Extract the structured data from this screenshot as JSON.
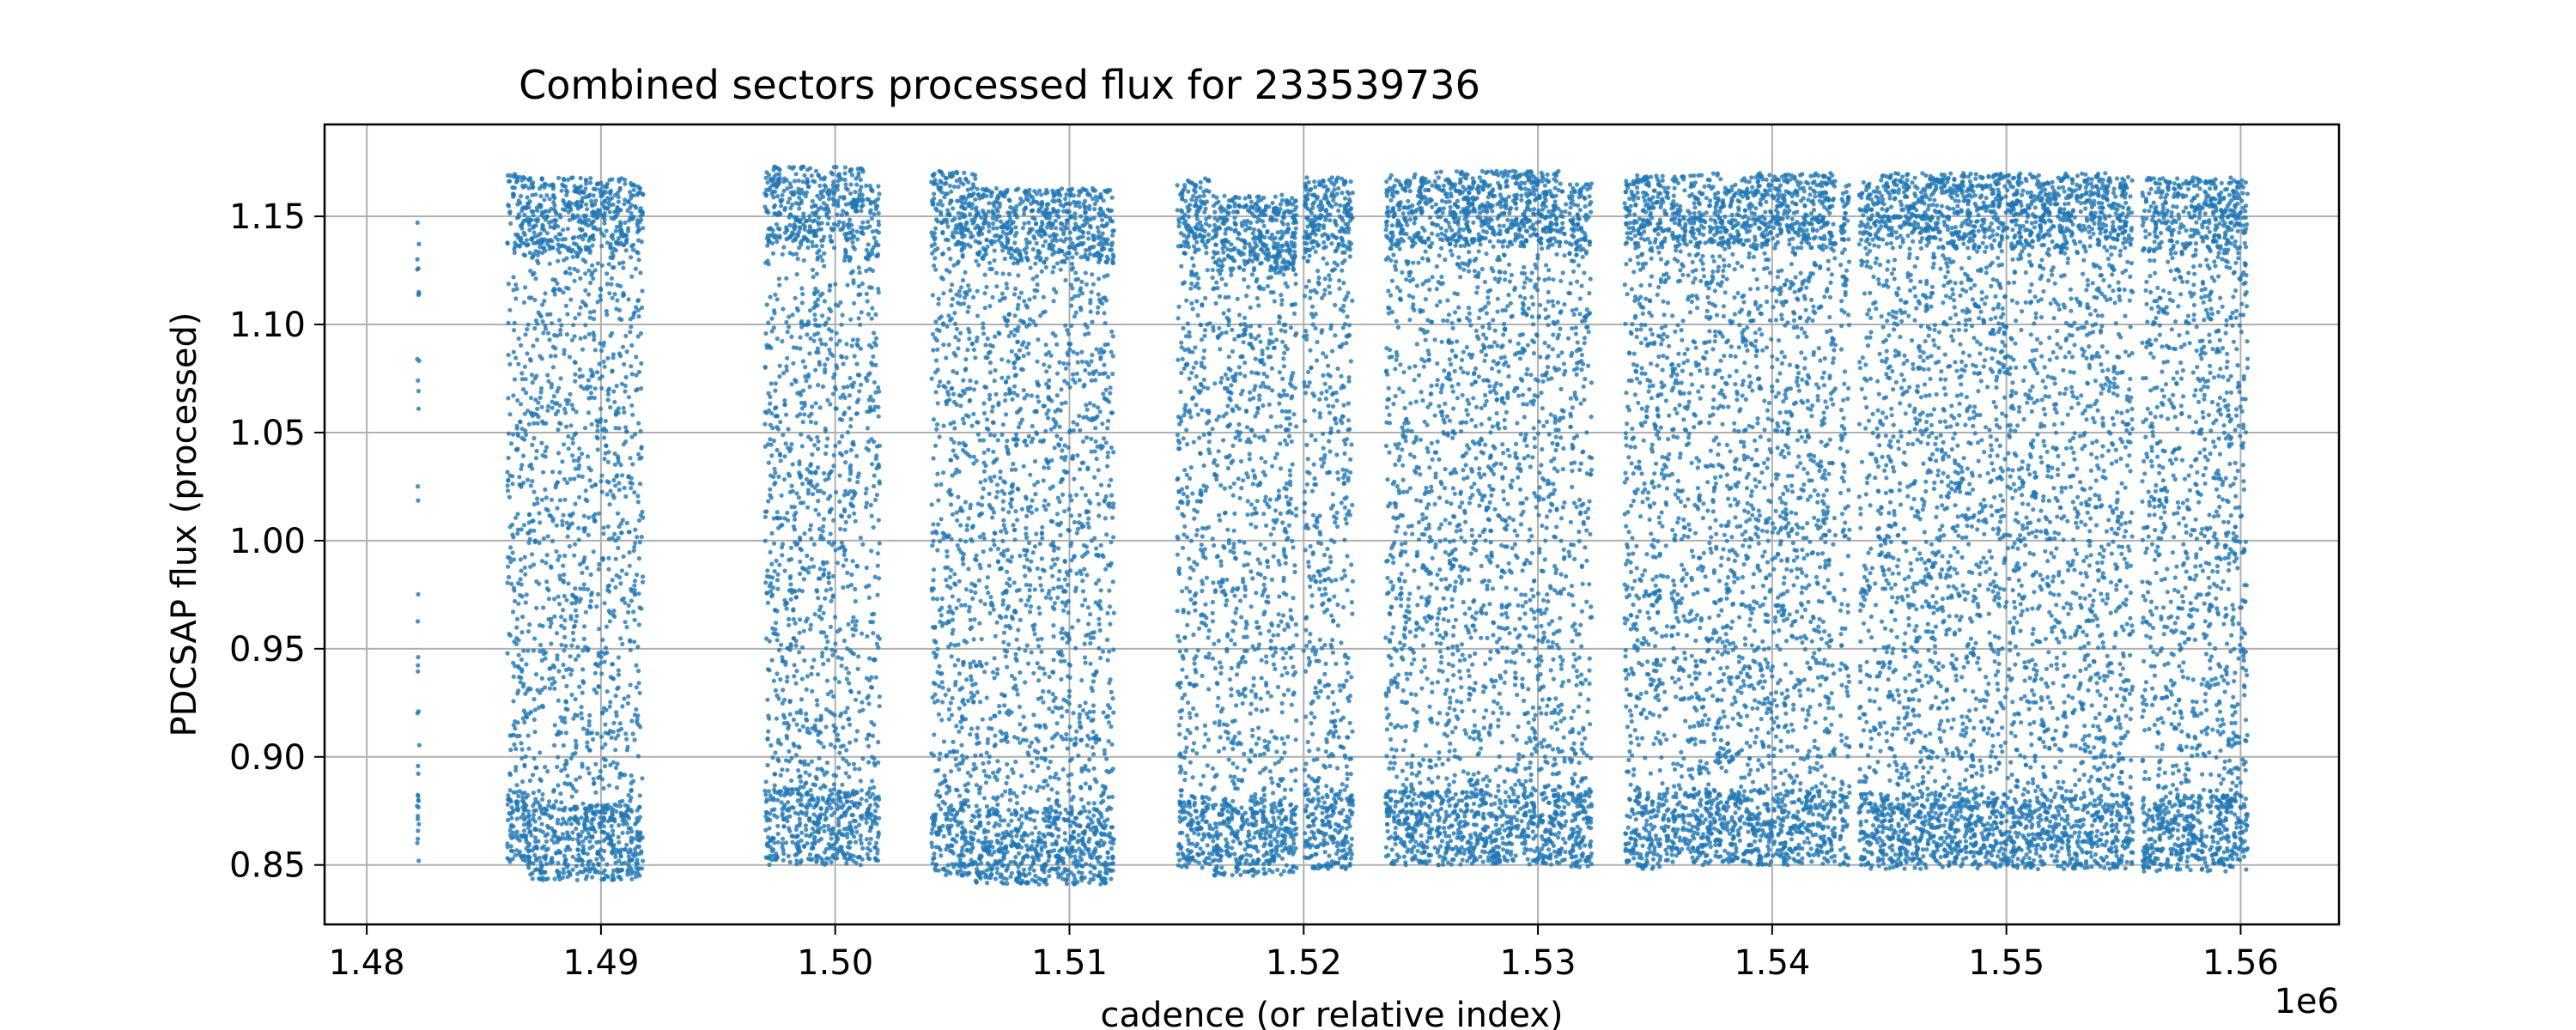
{
  "chart_data": {
    "type": "scatter",
    "title": "Combined sectors processed flux for 233539736",
    "xlabel": "cadence (or relative index)",
    "ylabel": "PDCSAP flux (processed)",
    "x_offset_label": "1e6",
    "xlim": [
      1.4782,
      1.5642
    ],
    "ylim": [
      0.8225,
      1.1925
    ],
    "x_ticks": [
      1.48,
      1.49,
      1.5,
      1.51,
      1.52,
      1.53,
      1.54,
      1.55,
      1.56
    ],
    "x_tick_labels": [
      "1.48",
      "1.49",
      "1.50",
      "1.51",
      "1.52",
      "1.53",
      "1.54",
      "1.55",
      "1.56"
    ],
    "y_ticks": [
      0.85,
      0.9,
      0.95,
      1.0,
      1.05,
      1.1,
      1.15
    ],
    "y_tick_labels": [
      "0.85",
      "0.90",
      "0.95",
      "1.00",
      "1.05",
      "1.10",
      "1.15"
    ],
    "grid": true,
    "marker_color": "#1f77b4",
    "series": [
      {
        "segments": [
          {
            "x": [
              1.48215,
              1.48225
            ],
            "y": [
              0.848,
              1.148
            ]
          },
          {
            "x": [
              1.486,
              1.4869
            ],
            "y": [
              0.85,
              1.17
            ]
          },
          {
            "x": [
              1.4869,
              1.4918
            ],
            "y": [
              0.843,
              1.168
            ]
          },
          {
            "x": [
              1.497,
              1.5012
            ],
            "y": [
              0.85,
              1.173
            ]
          },
          {
            "x": [
              1.5013,
              1.5019
            ],
            "y": [
              0.852,
              1.165
            ]
          },
          {
            "x": [
              1.5041,
              1.506
            ],
            "y": [
              0.845,
              1.171
            ]
          },
          {
            "x": [
              1.506,
              1.5119
            ],
            "y": [
              0.841,
              1.163
            ]
          },
          {
            "x": [
              1.5146,
              1.516
            ],
            "y": [
              0.848,
              1.168
            ]
          },
          {
            "x": [
              1.5161,
              1.5197
            ],
            "y": [
              0.845,
              1.16
            ]
          },
          {
            "x": [
              1.52,
              1.5221
            ],
            "y": [
              0.848,
              1.168
            ]
          },
          {
            "x": [
              1.5235,
              1.5255
            ],
            "y": [
              0.85,
              1.17
            ]
          },
          {
            "x": [
              1.5256,
              1.5312
            ],
            "y": [
              0.85,
              1.171
            ]
          },
          {
            "x": [
              1.5313,
              1.5323
            ],
            "y": [
              0.849,
              1.166
            ]
          },
          {
            "x": [
              1.5337,
              1.5356
            ],
            "y": [
              0.848,
              1.169
            ]
          },
          {
            "x": [
              1.5357,
              1.5427
            ],
            "y": [
              0.85,
              1.17
            ]
          },
          {
            "x": [
              1.5429,
              1.5433
            ],
            "y": [
              0.849,
              1.165
            ]
          },
          {
            "x": [
              1.5437,
              1.5554
            ],
            "y": [
              0.848,
              1.17
            ]
          },
          {
            "x": [
              1.5558,
              1.5603
            ],
            "y": [
              0.847,
              1.168
            ]
          }
        ]
      }
    ]
  }
}
